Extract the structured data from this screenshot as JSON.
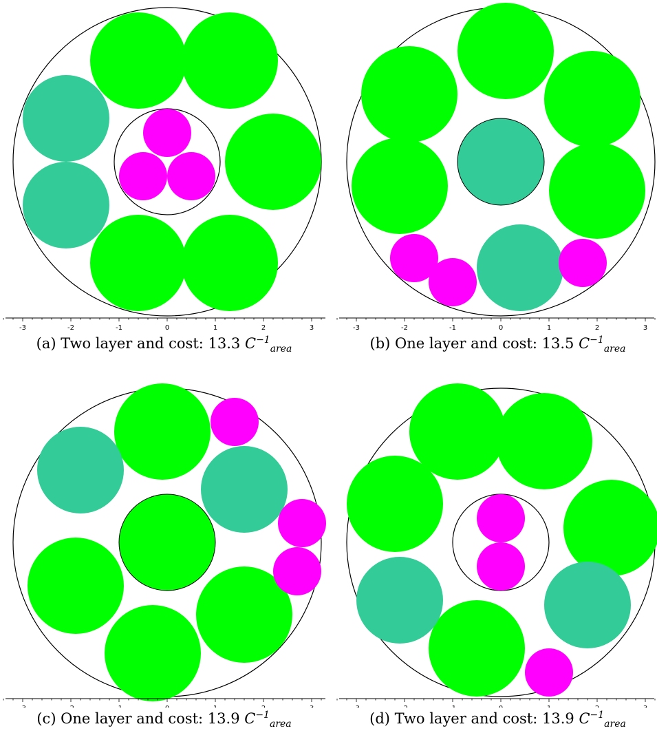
{
  "colors": {
    "large": "#00ff00",
    "medium": "#33cc99",
    "small": "#ff00ff",
    "outline": "#000000"
  },
  "axis": {
    "ticks": [
      "-3",
      "-2",
      "-1",
      "0",
      "1",
      "2",
      "3"
    ]
  },
  "panels": [
    {
      "id": "a",
      "caption": {
        "prefix": "(a) Two layer and cost: 13.3",
        "unit_base": "C",
        "unit_sup": "−1",
        "unit_sub": "area"
      },
      "outer_radius": 3.2,
      "inner_ring": {
        "x": 0.0,
        "y": 0.0,
        "r": 1.1
      },
      "circles": [
        {
          "kind": "large",
          "x": -0.6,
          "y": 2.1,
          "r": 1.0
        },
        {
          "kind": "large",
          "x": 1.3,
          "y": 2.1,
          "r": 1.0
        },
        {
          "kind": "large",
          "x": 2.2,
          "y": 0.0,
          "r": 1.0
        },
        {
          "kind": "large",
          "x": 1.3,
          "y": -2.1,
          "r": 1.0
        },
        {
          "kind": "large",
          "x": -0.6,
          "y": -2.1,
          "r": 1.0
        },
        {
          "kind": "medium",
          "x": -2.1,
          "y": 0.9,
          "r": 0.9
        },
        {
          "kind": "medium",
          "x": -2.1,
          "y": -0.9,
          "r": 0.9
        },
        {
          "kind": "small",
          "x": 0.0,
          "y": 0.6,
          "r": 0.5
        },
        {
          "kind": "small",
          "x": -0.5,
          "y": -0.3,
          "r": 0.5
        },
        {
          "kind": "small",
          "x": 0.5,
          "y": -0.3,
          "r": 0.5
        }
      ]
    },
    {
      "id": "b",
      "caption": {
        "prefix": "(b) One layer and cost: 13.5",
        "unit_base": "C",
        "unit_sup": "−1",
        "unit_sub": "area"
      },
      "outer_radius": 3.2,
      "inner_ring": null,
      "circles": [
        {
          "kind": "large",
          "x": 0.1,
          "y": 2.3,
          "r": 1.0
        },
        {
          "kind": "large",
          "x": -1.9,
          "y": 1.4,
          "r": 1.0
        },
        {
          "kind": "large",
          "x": 1.9,
          "y": 1.3,
          "r": 1.0
        },
        {
          "kind": "large",
          "x": -2.1,
          "y": -0.5,
          "r": 1.0
        },
        {
          "kind": "large",
          "x": 2.0,
          "y": -0.6,
          "r": 1.0
        },
        {
          "kind": "medium",
          "x": 0.0,
          "y": 0.0,
          "r": 0.9,
          "outlined": true
        },
        {
          "kind": "medium",
          "x": 0.4,
          "y": -2.2,
          "r": 0.9
        },
        {
          "kind": "small",
          "x": -1.8,
          "y": -2.0,
          "r": 0.5
        },
        {
          "kind": "small",
          "x": -1.0,
          "y": -2.5,
          "r": 0.5
        },
        {
          "kind": "small",
          "x": 1.7,
          "y": -2.1,
          "r": 0.5
        }
      ]
    },
    {
      "id": "c",
      "caption": {
        "prefix": "(c) One layer and cost: 13.9",
        "unit_base": "C",
        "unit_sup": "−1",
        "unit_sub": "area"
      },
      "outer_radius": 3.2,
      "inner_ring": null,
      "circles": [
        {
          "kind": "large",
          "x": -0.1,
          "y": 2.3,
          "r": 1.0
        },
        {
          "kind": "large",
          "x": 0.0,
          "y": 0.0,
          "r": 1.0,
          "outlined": true
        },
        {
          "kind": "large",
          "x": -1.9,
          "y": -0.9,
          "r": 1.0
        },
        {
          "kind": "large",
          "x": -0.3,
          "y": -2.3,
          "r": 1.0
        },
        {
          "kind": "large",
          "x": 1.6,
          "y": -1.5,
          "r": 1.0
        },
        {
          "kind": "medium",
          "x": -1.8,
          "y": 1.5,
          "r": 0.9
        },
        {
          "kind": "medium",
          "x": 1.6,
          "y": 1.1,
          "r": 0.9
        },
        {
          "kind": "small",
          "x": 1.4,
          "y": 2.5,
          "r": 0.5
        },
        {
          "kind": "small",
          "x": 2.8,
          "y": 0.4,
          "r": 0.5
        },
        {
          "kind": "small",
          "x": 2.7,
          "y": -0.6,
          "r": 0.5
        }
      ]
    },
    {
      "id": "d",
      "caption": {
        "prefix": "(d) Two layer and cost: 13.9",
        "unit_base": "C",
        "unit_sup": "−1",
        "unit_sub": "area"
      },
      "outer_radius": 3.2,
      "inner_ring": {
        "x": 0.0,
        "y": 0.0,
        "r": 1.0
      },
      "circles": [
        {
          "kind": "large",
          "x": -0.9,
          "y": 2.3,
          "r": 1.0
        },
        {
          "kind": "large",
          "x": 0.9,
          "y": 2.1,
          "r": 1.0
        },
        {
          "kind": "large",
          "x": -2.2,
          "y": 0.8,
          "r": 1.0
        },
        {
          "kind": "large",
          "x": 2.3,
          "y": 0.3,
          "r": 1.0
        },
        {
          "kind": "large",
          "x": -0.5,
          "y": -2.2,
          "r": 1.0
        },
        {
          "kind": "medium",
          "x": -2.1,
          "y": -1.2,
          "r": 0.9
        },
        {
          "kind": "medium",
          "x": 1.8,
          "y": -1.3,
          "r": 0.9
        },
        {
          "kind": "small",
          "x": 0.0,
          "y": 0.5,
          "r": 0.5
        },
        {
          "kind": "small",
          "x": 0.0,
          "y": -0.5,
          "r": 0.5
        },
        {
          "kind": "small",
          "x": 1.0,
          "y": -2.7,
          "r": 0.5
        }
      ]
    }
  ]
}
